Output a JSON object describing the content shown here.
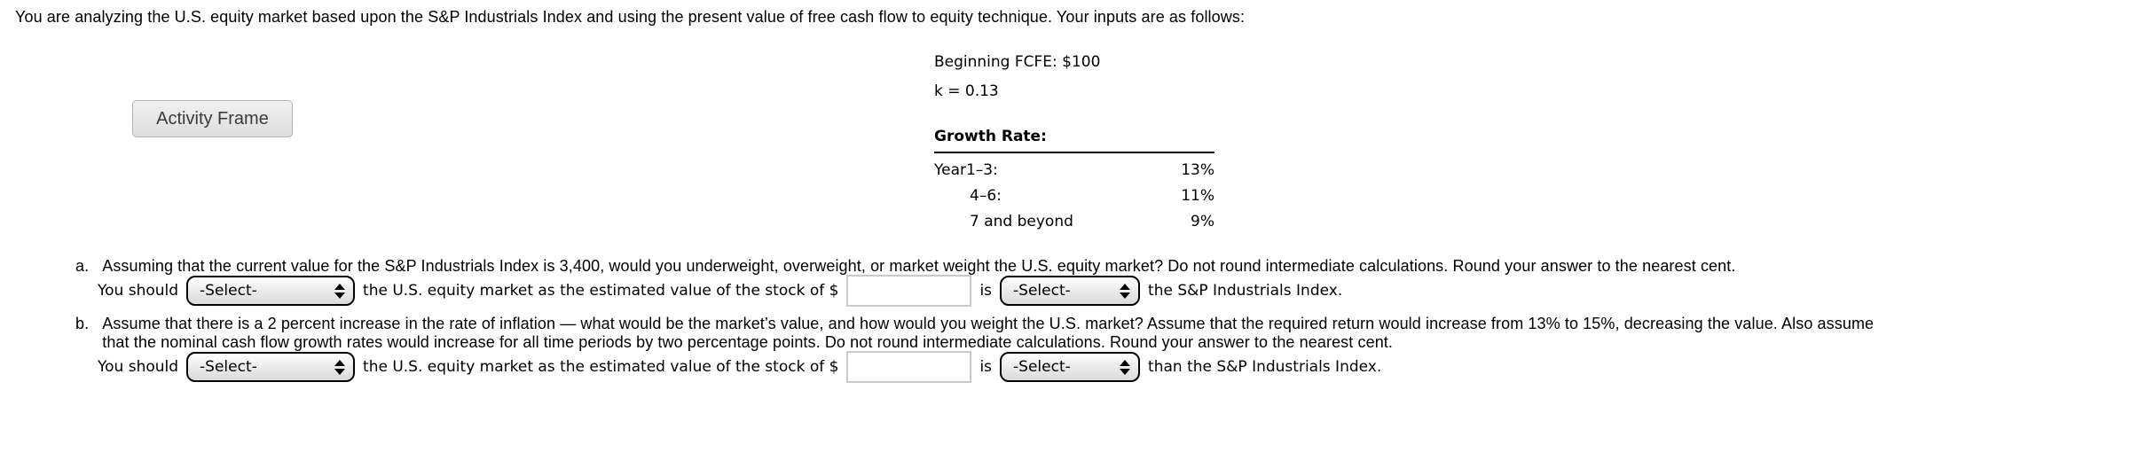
{
  "intro": "You are analyzing the U.S. equity market based upon the S&P Industrials Index and using the present value of free cash flow to equity technique. Your inputs are as follows:",
  "activity_frame": {
    "label": "Activity Frame"
  },
  "inputs_panel": {
    "fcfe_line": "Beginning FCFE: $100",
    "k_line": "k = 0.13",
    "growth_header": "Growth Rate:",
    "rows": [
      {
        "label": "Year1–3:",
        "value": "13%"
      },
      {
        "label": "4–6:",
        "value": "11%"
      },
      {
        "label": "7 and beyond",
        "value": "9%"
      }
    ]
  },
  "question_a": {
    "marker": "a.",
    "text": "Assuming that the current value for the S&P Industrials Index is 3,400, would you underweight, overweight, or market weight the U.S. equity market? Do not round intermediate calculations. Round your answer to the nearest cent.",
    "answer": {
      "prefix": "You should",
      "select1_value": "-Select-",
      "middle": "the U.S. equity market as the estimated value of the stock of $",
      "input_value": "",
      "connector": "is",
      "select2_value": "-Select-",
      "suffix": "the S&P Industrials Index."
    }
  },
  "question_b": {
    "marker": "b.",
    "text_line1": "Assume that there is a 2 percent increase in the rate of inflation — what would be the market’s value, and how would you weight the U.S. market? Assume that the required return would increase from 13% to 15%, decreasing the value. Also assume",
    "text_line2": "that the nominal cash flow growth rates would increase for all time periods by two percentage points. Do not round intermediate calculations. Round your answer to the nearest cent.",
    "answer": {
      "prefix": "You should",
      "select1_value": "-Select-",
      "middle": "the U.S. equity market as the estimated value of the stock of $",
      "input_value": "",
      "connector": "is",
      "select2_value": "-Select-",
      "suffix": "than the S&P Industrials Index."
    }
  },
  "colors": {
    "page_bg": "#ffffff",
    "text": "#000000",
    "button_bg": "#e6e6e6",
    "button_border": "#b3b3b3",
    "select_border": "#000000",
    "input_border": "#c9c9c9"
  }
}
